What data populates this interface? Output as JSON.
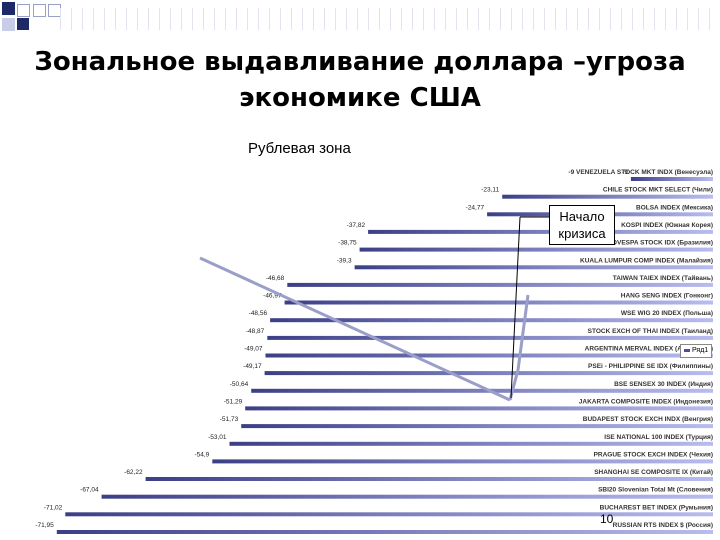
{
  "slide": {
    "title_line1": "Зональное выдавливание доллара –угроза",
    "title_line2": "экономике США",
    "subtitle": "Рублевая зона",
    "callout_line1": "Начало",
    "callout_line2": "кризиса",
    "page_number": "10"
  },
  "chart_data": {
    "type": "bar",
    "orientation": "horizontal",
    "title": "",
    "xlabel": "",
    "ylabel": "",
    "xlim": [
      -72,
      0
    ],
    "legend": {
      "label": "Ряд1",
      "placement": "right"
    },
    "colors": {
      "bar_dark": "#3b3f86",
      "bar_light": "#b8bcef",
      "annotation_line": "#9a9ec8"
    },
    "categories": [
      "VENEZUELA STOCK MKT INDX (Венесуэла)",
      "CHILE STOCK MKT SELECT (Чили)",
      "BOLSA INDEX (Мексика)",
      "KOSPI INDEX (Южная Корея)",
      "BOVESPA STOCK IDX (Бразилия)",
      "KUALA LUMPUR COMP INDEX (Малайзия)",
      "TAIWAN TAIEX INDEX (Тайвань)",
      "HANG SENG INDEX (Гонконг)",
      "WSE WIG 20 INDEX (Польша)",
      "STOCK EXCH OF THAI INDEX (Таиланд)",
      "ARGENTINA MERVAL INDEX (Аргентина)",
      "PSEi - PHILIPPINE SE IDX (Филиппины)",
      "BSE SENSEX 30 INDEX (Индия)",
      "JAKARTA COMPOSITE INDEX (Индонезия)",
      "BUDAPEST STOCK EXCH INDX (Венгрия)",
      "ISE NATIONAL 100 INDEX (Турция)",
      "PRAGUE STOCK EXCH INDEX (Чехия)",
      "SHANGHAI SE COMPOSITE IX (Китай)",
      "SBI20 Slovenian Total Mt (Словения)",
      "BUCHAREST BET INDEX (Румыния)",
      "RUSSIAN RTS INDEX $ (Россия)"
    ],
    "values": [
      -9,
      -23.11,
      -24.77,
      -37.82,
      -38.75,
      -39.3,
      -46.68,
      -46.97,
      -48.56,
      -48.87,
      -49.07,
      -49.17,
      -50.64,
      -51.29,
      -51.73,
      -53.01,
      -54.9,
      -62.22,
      -67.04,
      -71.02,
      -71.95
    ],
    "value_labels": [
      "-9",
      "-23,11",
      "-24,77",
      "-37,82",
      "-38,75",
      "-39,3",
      "-46,68",
      "-46,97",
      "-48,56",
      "-48,87",
      "-49,07",
      "-49,17",
      "-50,64",
      "-51,29",
      "-51,73",
      "-53,01",
      "-54,9",
      "-62,22",
      "-67,04",
      "-71,02",
      "-71,95"
    ]
  }
}
